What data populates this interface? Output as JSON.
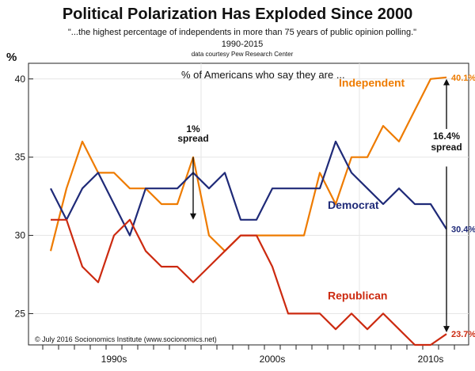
{
  "chart_data": {
    "type": "line",
    "title": "Political Polarization Has Exploded Since 2000",
    "subtitle": "\"...the highest percentage of independents in more than 75 years of public opinion polling.\"",
    "year_range": "1990-2015",
    "source": "data courtesy Pew Research Center",
    "ylabel": "%",
    "intro_text": "% of Americans who say they are ...",
    "credit": "© July 2016 Socionomics Institute (www.socionomics.net)",
    "ylim": [
      23,
      41
    ],
    "xlim": [
      1988.6,
      2016.4
    ],
    "yticks": [
      "25",
      "30",
      "35",
      "40"
    ],
    "ytick_values": [
      25,
      30,
      35,
      40
    ],
    "xticks": [
      "1990s",
      "2000s",
      "2010s"
    ],
    "xtick_values": [
      1994,
      2004,
      2014
    ],
    "x": [
      1990,
      1991,
      1992,
      1993,
      1994,
      1995,
      1996,
      1997,
      1998,
      1999,
      2000,
      2001,
      2002,
      2003,
      2004,
      2005,
      2006,
      2007,
      2008,
      2009,
      2010,
      2011,
      2012,
      2013,
      2014,
      2015
    ],
    "series": [
      {
        "name": "Independent",
        "color": "#ee7b00",
        "values": [
          29,
          33,
          36,
          34,
          34,
          33,
          33,
          32,
          32,
          35,
          30,
          29,
          30,
          30,
          30,
          30,
          30,
          34,
          32,
          35,
          35,
          37,
          36,
          38,
          40,
          40.1
        ],
        "end_label": "40.1%"
      },
      {
        "name": "Democrat",
        "color": "#1f2a78",
        "values": [
          33,
          31,
          33,
          34,
          32,
          30,
          33,
          33,
          33,
          34,
          33,
          34,
          31,
          31,
          33,
          33,
          33,
          33,
          36,
          34,
          33,
          32,
          33,
          32,
          32,
          30.4
        ],
        "end_label": "30.4%"
      },
      {
        "name": "Republican",
        "color": "#cc2a10",
        "values": [
          31,
          31,
          28,
          27,
          30,
          31,
          29,
          28,
          28,
          27,
          28,
          29,
          30,
          30,
          28,
          25,
          25,
          25,
          24,
          25,
          24,
          25,
          24,
          23,
          23,
          23.7
        ],
        "end_label": "23.7%"
      }
    ],
    "annotations": [
      {
        "text_lines": [
          "1%",
          "spread"
        ],
        "x": 1999,
        "y_from": 35,
        "y_to": 31
      },
      {
        "text_lines": [
          "16.4%",
          "spread"
        ],
        "x": 2015,
        "y_top": 40.1,
        "y_bottom": 23.7
      }
    ],
    "grid": true
  }
}
